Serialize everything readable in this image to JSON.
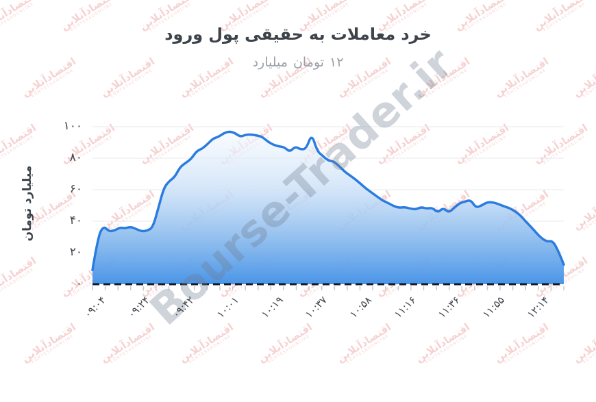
{
  "header": {
    "title": "ورود پول حقیقی به معاملات خرد",
    "subtitle": "میلیارد تومان ۱۲"
  },
  "watermarks": {
    "tile_text": "اقتصادآنلاین",
    "tile_subtext": "EGHTESADONLINE",
    "diagonal_text": "Bourse-Trader.ir"
  },
  "chart_data": {
    "type": "area",
    "title": "ورود پول حقیقی به معاملات خرد",
    "subtitle": "میلیارد تومان ۱۲",
    "ylabel": "میلیارد تومان",
    "xlabel": "",
    "ylim": [
      0,
      100
    ],
    "grid": "horizontal",
    "legend": "none",
    "y_ticks": [
      {
        "label": "۰",
        "value": 0
      },
      {
        "label": "۲۰",
        "value": 20
      },
      {
        "label": "۴۰",
        "value": 40
      },
      {
        "label": "۶۰",
        "value": 60
      },
      {
        "label": "۸۰",
        "value": 80
      },
      {
        "label": "۱۰۰",
        "value": 100
      }
    ],
    "x_tick_labels": [
      "۰۹:۰۴",
      "۰۹:۲۴",
      "۰۹:۴۲",
      "۱۰:۰۱",
      "۱۰:۱۹",
      "۱۰:۳۷",
      "۱۰:۵۸",
      "۱۱:۱۶",
      "۱۱:۳۶",
      "۱۱:۵۵",
      "۱۲:۱۴"
    ],
    "minor_ticks_x": 38,
    "baseline": {
      "value": 0,
      "style": "dashed-black"
    },
    "series": [
      {
        "name": "real-money-inflow",
        "values": [
          9,
          30,
          37,
          33.5,
          34,
          36,
          35.5,
          36.5,
          35,
          33.5,
          34,
          36,
          48,
          61,
          65.5,
          68,
          74.5,
          77,
          79.5,
          84.5,
          86,
          89,
          92.5,
          93.5,
          96,
          97,
          96,
          93.5,
          95,
          95,
          94.5,
          93.5,
          90.5,
          88.5,
          87.5,
          87,
          84,
          87.5,
          85.5,
          86,
          95.5,
          84.5,
          81.5,
          78.5,
          78,
          75,
          71.5,
          69,
          66.5,
          63.5,
          60.5,
          58,
          55.5,
          53,
          51.5,
          49.5,
          48.5,
          49,
          48,
          47.5,
          49,
          48,
          48.5,
          45.5,
          48.5,
          45.5,
          48.5,
          51.5,
          52.5,
          53.5,
          48.5,
          50,
          52,
          52,
          51,
          49.5,
          48.5,
          46.5,
          44,
          40,
          36.5,
          32.5,
          29,
          27,
          27.5,
          21,
          12.5
        ]
      }
    ]
  },
  "style": {
    "line_color": "#2a7cdf",
    "fill_stops": [
      [
        "0%",
        "#f8fbff",
        0.6
      ],
      [
        "40%",
        "#c9dff7",
        0.8
      ],
      [
        "75%",
        "#7fb4ec",
        0.92
      ],
      [
        "100%",
        "#4a95e8",
        1
      ]
    ],
    "grid_color": "#e9e9ec",
    "zero_line_color": "#141b24",
    "tick_color": "#c5c9ce",
    "title_color": "#3d434b",
    "subtitle_color": "#9aa0a8",
    "label_color": "#40464d",
    "watermark_red": "#e06060",
    "watermark_gray": "#6e7b8e"
  }
}
